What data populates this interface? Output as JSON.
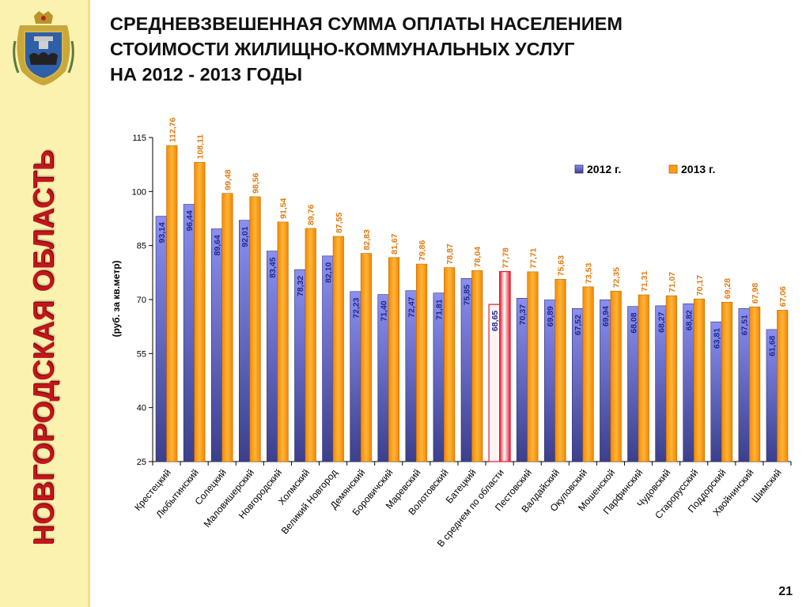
{
  "sidebar": {
    "region_name": "НОВГОРОДСКАЯ ОБЛАСТЬ",
    "emblem_icon": "coat-of-arms-icon"
  },
  "slide": {
    "title_lines": [
      "СРЕДНЕВЗВЕШЕННАЯ СУММА ОПЛАТЫ НАСЕЛЕНИЕМ",
      "СТОИМОСТИ ЖИЛИЩНО-КОММУНАЛЬНЫХ УСЛУГ",
      "НА 2012 - 2013 ГОДЫ"
    ],
    "page_number": "21"
  },
  "colors": {
    "series_2012": "#7b7fdc",
    "series_2013": "#ff9e1a",
    "highlight": "#e8192c",
    "label_2012": "#1f2a8c",
    "label_2013": "#e07a10"
  },
  "chart_data": {
    "type": "bar",
    "ylabel": "(руб. за кв.метр)",
    "ylim": [
      25,
      115
    ],
    "yticks": [
      25,
      40,
      55,
      70,
      85,
      100,
      115
    ],
    "legend_position": "top-right",
    "highlight_category": "В среднем по области",
    "categories": [
      "Крестецкий",
      "Любытинский",
      "Солецкий",
      "Маловишерский",
      "Новгородский",
      "Холмский",
      "Великий Новгород",
      "Демянский",
      "Боровичский",
      "Маревский",
      "Волотовский",
      "Батецкий",
      "В среднем по области",
      "Пестовский",
      "Валдайский",
      "Окуловский",
      "Мошенской",
      "Парфинский",
      "Чудовский",
      "Старорусский",
      "Поддорский",
      "Хвойнинский",
      "Шимский"
    ],
    "series": [
      {
        "name": "2012 г.",
        "values": [
          93.14,
          96.44,
          89.64,
          92.01,
          83.45,
          78.32,
          82.1,
          72.23,
          71.4,
          72.47,
          71.81,
          75.85,
          68.65,
          70.37,
          69.89,
          67.52,
          69.94,
          68.08,
          68.27,
          68.82,
          63.81,
          67.51,
          61.68
        ],
        "labels": [
          "93,14",
          "96,44",
          "89,64",
          "92,01",
          "83,45",
          "78,32",
          "82,10",
          "72,23",
          "71,40",
          "72,47",
          "71,81",
          "75,85",
          "68,65",
          "70,37",
          "69,89",
          "67,52",
          "69,94",
          "68,08",
          "68,27",
          "68,82",
          "63,81",
          "67,51",
          "61,68"
        ]
      },
      {
        "name": "2013 г.",
        "values": [
          112.76,
          108.11,
          99.48,
          98.56,
          91.54,
          89.76,
          87.55,
          82.83,
          81.67,
          79.86,
          78.87,
          78.04,
          77.78,
          77.71,
          75.63,
          73.53,
          72.35,
          71.31,
          71.07,
          70.17,
          69.28,
          67.98,
          67.06
        ],
        "labels": [
          "112,76",
          "108,11",
          "99,48",
          "98,56",
          "91,54",
          "89,76",
          "87,55",
          "82,83",
          "81,67",
          "79,86",
          "78,87",
          "78,04",
          "77,78",
          "77,71",
          "75,63",
          "73,53",
          "72,35",
          "71,31",
          "71,07",
          "70,17",
          "69,28",
          "67,98",
          "67,06"
        ]
      }
    ]
  }
}
